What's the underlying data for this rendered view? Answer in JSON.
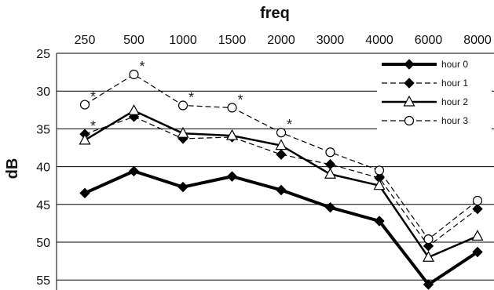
{
  "chart_data": {
    "type": "line",
    "title": "",
    "xlabel": "freq",
    "ylabel": "dB",
    "categories": [
      "250",
      "500",
      "1000",
      "1500",
      "2000",
      "3000",
      "4000",
      "6000",
      "8000"
    ],
    "ylim": [
      57,
      25
    ],
    "y_ticks": [
      "25",
      "30",
      "35",
      "40",
      "45",
      "50",
      "55"
    ],
    "y_axis_inverted": true,
    "x_axis_position": "top",
    "grid": "horizontal",
    "legend_position": "top-right",
    "series": [
      {
        "name": "hour 0",
        "values": [
          43.5,
          40.6,
          42.7,
          41.3,
          43.1,
          45.4,
          47.2,
          55.6,
          51.3
        ],
        "marker": "diamond-filled",
        "line": "solid-thick",
        "color": "#000000"
      },
      {
        "name": "hour 1",
        "values": [
          35.7,
          33.4,
          36.3,
          36.1,
          38.4,
          39.7,
          41.5,
          50.5,
          45.6
        ],
        "marker": "diamond-filled",
        "line": "dashed",
        "color": "#000000"
      },
      {
        "name": "hour 2",
        "values": [
          36.5,
          32.6,
          35.6,
          35.9,
          37.2,
          41.0,
          42.5,
          52.0,
          49.2
        ],
        "marker": "triangle-open",
        "line": "solid-medium",
        "color": "#000000"
      },
      {
        "name": "hour 3",
        "values": [
          31.8,
          27.8,
          31.9,
          32.2,
          35.5,
          38.1,
          40.5,
          49.6,
          44.5
        ],
        "marker": "circle-open",
        "line": "dashed",
        "color": "#000000"
      }
    ],
    "annotations": [
      {
        "text": "*",
        "x": "250",
        "y": 31.8
      },
      {
        "text": "*",
        "x": "250",
        "y": 35.7
      },
      {
        "text": "*",
        "x": "500",
        "y": 27.8
      },
      {
        "text": "*",
        "x": "1000",
        "y": 31.9
      },
      {
        "text": "*",
        "x": "1500",
        "y": 32.2
      },
      {
        "text": "*",
        "x": "2000",
        "y": 35.5
      }
    ]
  }
}
